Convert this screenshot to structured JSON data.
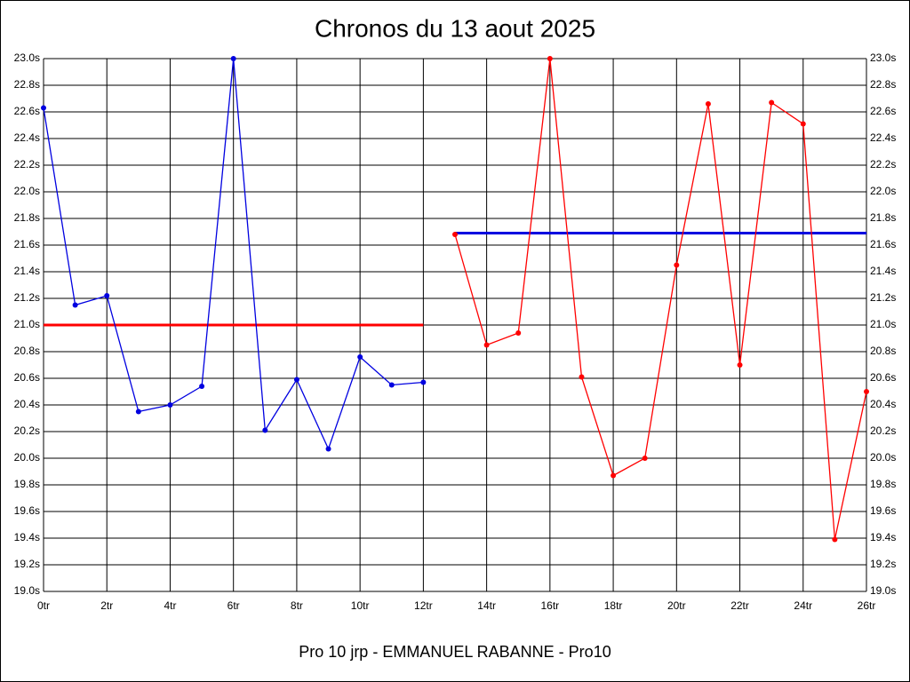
{
  "chart_data": {
    "type": "line",
    "title": "Chronos du 13 aout 2025",
    "footer": "Pro 10 jrp - EMMANUEL RABANNE - Pro10",
    "xlim": [
      0,
      26
    ],
    "ylim": [
      19.0,
      23.0
    ],
    "grid": true,
    "xticks": [
      {
        "value": 0,
        "label": "0tr"
      },
      {
        "value": 2,
        "label": "2tr"
      },
      {
        "value": 4,
        "label": "4tr"
      },
      {
        "value": 6,
        "label": "6tr"
      },
      {
        "value": 8,
        "label": "8tr"
      },
      {
        "value": 10,
        "label": "10tr"
      },
      {
        "value": 12,
        "label": "12tr"
      },
      {
        "value": 14,
        "label": "14tr"
      },
      {
        "value": 16,
        "label": "16tr"
      },
      {
        "value": 18,
        "label": "18tr"
      },
      {
        "value": 20,
        "label": "20tr"
      },
      {
        "value": 22,
        "label": "22tr"
      },
      {
        "value": 24,
        "label": "24tr"
      },
      {
        "value": 26,
        "label": "26tr"
      }
    ],
    "yticks": [
      {
        "value": 19.0,
        "label": "19.0s"
      },
      {
        "value": 19.2,
        "label": "19.2s"
      },
      {
        "value": 19.4,
        "label": "19.4s"
      },
      {
        "value": 19.6,
        "label": "19.6s"
      },
      {
        "value": 19.8,
        "label": "19.8s"
      },
      {
        "value": 20.0,
        "label": "20.0s"
      },
      {
        "value": 20.2,
        "label": "20.2s"
      },
      {
        "value": 20.4,
        "label": "20.4s"
      },
      {
        "value": 20.6,
        "label": "20.6s"
      },
      {
        "value": 20.8,
        "label": "20.8s"
      },
      {
        "value": 21.0,
        "label": "21.0s"
      },
      {
        "value": 21.2,
        "label": "21.2s"
      },
      {
        "value": 21.4,
        "label": "21.4s"
      },
      {
        "value": 21.6,
        "label": "21.6s"
      },
      {
        "value": 21.8,
        "label": "21.8s"
      },
      {
        "value": 22.0,
        "label": "22.0s"
      },
      {
        "value": 22.2,
        "label": "22.2s"
      },
      {
        "value": 22.4,
        "label": "22.4s"
      },
      {
        "value": 22.6,
        "label": "22.6s"
      },
      {
        "value": 22.8,
        "label": "22.8s"
      },
      {
        "value": 23.0,
        "label": "23.0s"
      }
    ],
    "series": [
      {
        "color": "#0000e0",
        "x": [
          0,
          1,
          2,
          3,
          4,
          5,
          6,
          7,
          8,
          9,
          10,
          11,
          12
        ],
        "values": [
          22.63,
          21.15,
          21.22,
          20.35,
          20.4,
          20.54,
          23.0,
          20.21,
          20.59,
          20.07,
          20.76,
          20.55,
          20.57
        ]
      },
      {
        "color": "#ff0000",
        "x": [
          13,
          14,
          15,
          16,
          17,
          18,
          19,
          20,
          21,
          22,
          23,
          24,
          25,
          26
        ],
        "values": [
          21.68,
          20.85,
          20.94,
          23.0,
          20.61,
          19.87,
          20.0,
          21.45,
          22.66,
          20.7,
          22.67,
          22.51,
          19.39,
          20.5
        ]
      }
    ],
    "hlines": [
      {
        "value": 21.0,
        "xrange": [
          0,
          12
        ],
        "color": "#ff0000"
      },
      {
        "value": 21.69,
        "xrange": [
          13,
          26
        ],
        "color": "#0000e0"
      }
    ]
  }
}
